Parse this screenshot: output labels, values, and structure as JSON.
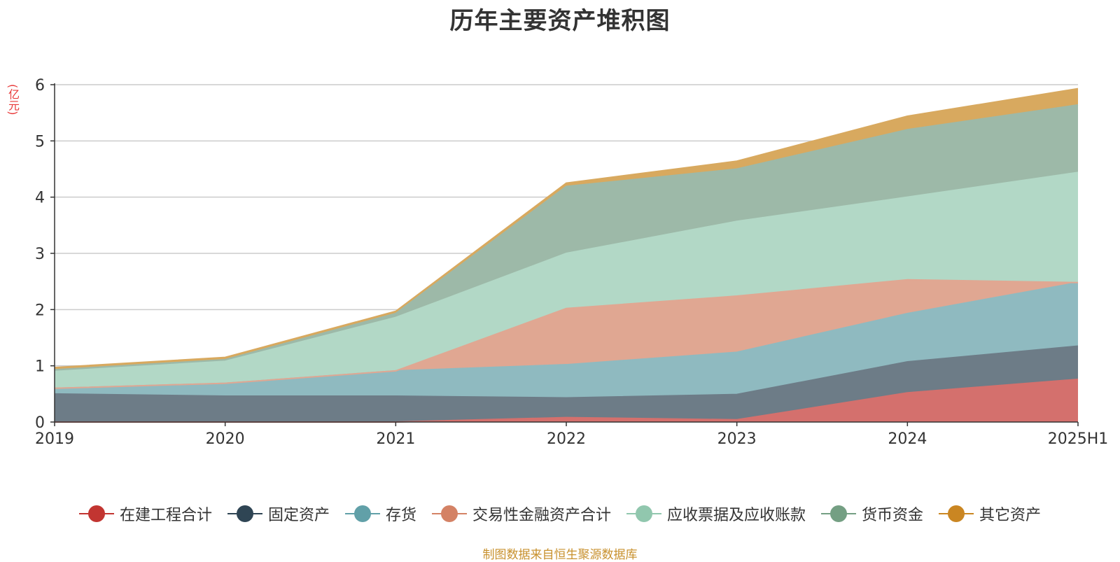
{
  "page": {
    "title": "历年主要资产堆积图",
    "unit": "(亿元)",
    "source": "制图数据来自恒生聚源数据库"
  },
  "chart_data": {
    "type": "area",
    "stacked": true,
    "title": "历年主要资产堆积图",
    "ylabel": "(亿元)",
    "x": [
      "2019",
      "2020",
      "2021",
      "2022",
      "2023",
      "2024",
      "2025H1"
    ],
    "ylim": [
      0,
      6
    ],
    "yticks": [
      0,
      1,
      2,
      3,
      4,
      5,
      6
    ],
    "grid": true,
    "legend_position": "bottom",
    "series": [
      {
        "name": "在建工程合计",
        "color": "#c23531",
        "fill": "#d4706d",
        "values": [
          0,
          0,
          0,
          0.08,
          0.04,
          0.52,
          0.76
        ]
      },
      {
        "name": "固定资产",
        "color": "#2f4554",
        "fill": "#6d7c87",
        "values": [
          0.5,
          0.46,
          0.46,
          0.35,
          0.45,
          0.55,
          0.59
        ]
      },
      {
        "name": "存货",
        "color": "#61a0a8",
        "fill": "#8fbac0",
        "values": [
          0.1,
          0.23,
          0.45,
          0.59,
          0.75,
          0.86,
          1.13
        ]
      },
      {
        "name": "交易性金融资产合计",
        "color": "#d48265",
        "fill": "#e0a792",
        "values": [
          0,
          0,
          0,
          1.0,
          1.0,
          0.6,
          0
        ]
      },
      {
        "name": "应收票据及应收账款",
        "color": "#91c7ae",
        "fill": "#b2d8c6",
        "values": [
          0.3,
          0.39,
          0.95,
          0.98,
          1.33,
          1.47,
          1.96
        ]
      },
      {
        "name": "货币资金",
        "color": "#749f83",
        "fill": "#9db9a8",
        "values": [
          0.03,
          0.03,
          0.07,
          1.19,
          0.93,
          1.2,
          1.2
        ]
      },
      {
        "name": "其它资产",
        "color": "#ca8622",
        "fill": "#d8a95f",
        "values": [
          0.04,
          0.04,
          0.04,
          0.06,
          0.14,
          0.24,
          0.29
        ]
      }
    ]
  }
}
